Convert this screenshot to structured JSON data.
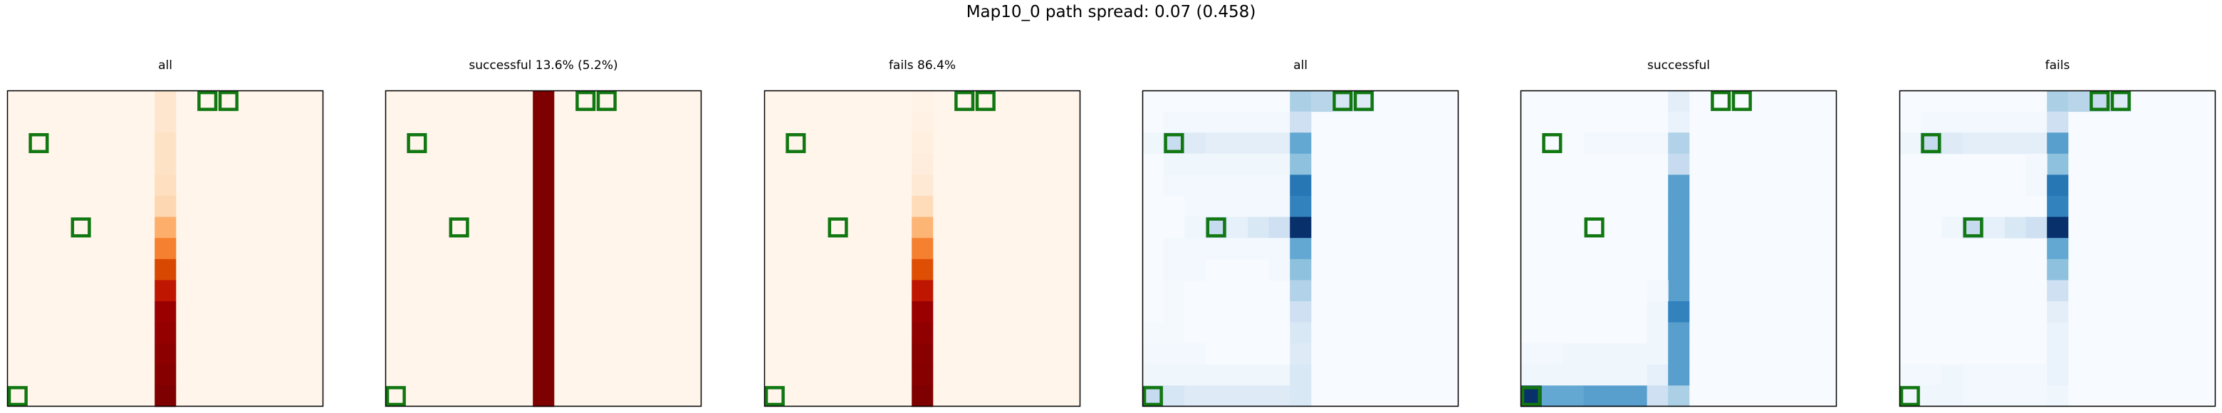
{
  "figure": {
    "suptitle": "Map10_0 path spread: 0.07 (0.458)"
  },
  "chart_data": {
    "type": "heatmap",
    "grid_size": 15,
    "markers": [
      [
        9,
        0
      ],
      [
        10,
        0
      ],
      [
        1,
        2
      ],
      [
        3,
        6
      ],
      [
        0,
        14
      ]
    ],
    "marker_color": "#117711",
    "panels": [
      {
        "title": "all",
        "cmap": "reds",
        "cells": [
          [
            7,
            0,
            0.15
          ],
          [
            7,
            1,
            0.15
          ],
          [
            7,
            2,
            0.18
          ],
          [
            7,
            3,
            0.18
          ],
          [
            7,
            4,
            0.2
          ],
          [
            7,
            5,
            0.25
          ],
          [
            7,
            6,
            0.45
          ],
          [
            7,
            7,
            0.55
          ],
          [
            7,
            8,
            0.75
          ],
          [
            7,
            9,
            0.82
          ],
          [
            7,
            10,
            0.92
          ],
          [
            7,
            11,
            0.94
          ],
          [
            7,
            12,
            0.96
          ],
          [
            7,
            13,
            0.98
          ],
          [
            7,
            14,
            1.0
          ]
        ]
      },
      {
        "title": "successful 13.6% (5.2%)",
        "cmap": "reds",
        "cells": [
          [
            7,
            0,
            1
          ],
          [
            7,
            1,
            1
          ],
          [
            7,
            2,
            1
          ],
          [
            7,
            3,
            1
          ],
          [
            7,
            4,
            1
          ],
          [
            7,
            5,
            1
          ],
          [
            7,
            6,
            1
          ],
          [
            7,
            7,
            1
          ],
          [
            7,
            8,
            1
          ],
          [
            7,
            9,
            1
          ],
          [
            7,
            10,
            1
          ],
          [
            7,
            11,
            1
          ],
          [
            7,
            12,
            1
          ],
          [
            7,
            13,
            1
          ],
          [
            7,
            14,
            1
          ]
        ]
      },
      {
        "title": "fails 86.4%",
        "cmap": "reds",
        "cells": [
          [
            7,
            0,
            0.02
          ],
          [
            7,
            1,
            0.04
          ],
          [
            7,
            2,
            0.06
          ],
          [
            7,
            3,
            0.08
          ],
          [
            7,
            4,
            0.12
          ],
          [
            7,
            5,
            0.22
          ],
          [
            7,
            6,
            0.42
          ],
          [
            7,
            7,
            0.55
          ],
          [
            7,
            8,
            0.72
          ],
          [
            7,
            9,
            0.82
          ],
          [
            7,
            10,
            0.92
          ],
          [
            7,
            11,
            0.95
          ],
          [
            7,
            12,
            0.97
          ],
          [
            7,
            13,
            0.98
          ],
          [
            7,
            14,
            1.0
          ]
        ]
      },
      {
        "title": "all",
        "cmap": "blues",
        "cells": [
          [
            7,
            0,
            0.4
          ],
          [
            8,
            0,
            0.35
          ],
          [
            9,
            0,
            0.2
          ],
          [
            10,
            0,
            0.15
          ],
          [
            1,
            1,
            0.03
          ],
          [
            2,
            1,
            0.03
          ],
          [
            3,
            1,
            0.03
          ],
          [
            4,
            1,
            0.03
          ],
          [
            5,
            1,
            0.03
          ],
          [
            6,
            1,
            0.03
          ],
          [
            7,
            1,
            0.25
          ],
          [
            0,
            2,
            0.05
          ],
          [
            1,
            2,
            0.28
          ],
          [
            2,
            2,
            0.15
          ],
          [
            3,
            2,
            0.12
          ],
          [
            4,
            2,
            0.12
          ],
          [
            5,
            2,
            0.12
          ],
          [
            6,
            2,
            0.12
          ],
          [
            7,
            2,
            0.62
          ],
          [
            1,
            3,
            0.05
          ],
          [
            2,
            3,
            0.05
          ],
          [
            3,
            3,
            0.05
          ],
          [
            4,
            3,
            0.05
          ],
          [
            5,
            3,
            0.05
          ],
          [
            6,
            3,
            0.05
          ],
          [
            7,
            3,
            0.5
          ],
          [
            1,
            4,
            0.03
          ],
          [
            2,
            4,
            0.03
          ],
          [
            3,
            4,
            0.03
          ],
          [
            4,
            4,
            0.03
          ],
          [
            5,
            4,
            0.03
          ],
          [
            6,
            4,
            0.03
          ],
          [
            7,
            4,
            0.78
          ],
          [
            2,
            5,
            0.03
          ],
          [
            3,
            5,
            0.03
          ],
          [
            4,
            5,
            0.03
          ],
          [
            5,
            5,
            0.03
          ],
          [
            6,
            5,
            0.03
          ],
          [
            7,
            5,
            0.75
          ],
          [
            2,
            6,
            0.05
          ],
          [
            3,
            6,
            0.3
          ],
          [
            4,
            6,
            0.1
          ],
          [
            5,
            6,
            0.18
          ],
          [
            6,
            6,
            0.25
          ],
          [
            7,
            6,
            1.0
          ],
          [
            1,
            7,
            0.03
          ],
          [
            2,
            7,
            0.03
          ],
          [
            3,
            7,
            0.03
          ],
          [
            4,
            7,
            0.03
          ],
          [
            5,
            7,
            0.03
          ],
          [
            6,
            7,
            0.03
          ],
          [
            7,
            7,
            0.62
          ],
          [
            1,
            8,
            0.03
          ],
          [
            2,
            8,
            0.03
          ],
          [
            6,
            8,
            0.03
          ],
          [
            7,
            8,
            0.5
          ],
          [
            1,
            9,
            0.02
          ],
          [
            7,
            9,
            0.38
          ],
          [
            1,
            10,
            0.02
          ],
          [
            7,
            10,
            0.25
          ],
          [
            0,
            11,
            0.02
          ],
          [
            1,
            11,
            0.02
          ],
          [
            7,
            11,
            0.18
          ],
          [
            0,
            12,
            0.03
          ],
          [
            1,
            12,
            0.03
          ],
          [
            2,
            12,
            0.03
          ],
          [
            7,
            12,
            0.15
          ],
          [
            0,
            13,
            0.05
          ],
          [
            1,
            13,
            0.05
          ],
          [
            2,
            13,
            0.05
          ],
          [
            3,
            13,
            0.05
          ],
          [
            4,
            13,
            0.05
          ],
          [
            5,
            13,
            0.05
          ],
          [
            6,
            13,
            0.05
          ],
          [
            7,
            13,
            0.18
          ],
          [
            0,
            14,
            0.3
          ],
          [
            1,
            14,
            0.2
          ],
          [
            2,
            14,
            0.15
          ],
          [
            3,
            14,
            0.15
          ],
          [
            4,
            14,
            0.15
          ],
          [
            5,
            14,
            0.15
          ],
          [
            6,
            14,
            0.15
          ],
          [
            7,
            14,
            0.18
          ]
        ]
      },
      {
        "title": "successful",
        "cmap": "blues",
        "cells": [
          [
            7,
            0,
            0.12
          ],
          [
            7,
            1,
            0.08
          ],
          [
            3,
            2,
            0.03
          ],
          [
            4,
            2,
            0.03
          ],
          [
            5,
            2,
            0.03
          ],
          [
            6,
            2,
            0.03
          ],
          [
            7,
            2,
            0.38
          ],
          [
            7,
            3,
            0.3
          ],
          [
            7,
            4,
            0.65
          ],
          [
            7,
            5,
            0.65
          ],
          [
            7,
            6,
            0.65
          ],
          [
            7,
            7,
            0.65
          ],
          [
            7,
            8,
            0.65
          ],
          [
            7,
            9,
            0.65
          ],
          [
            6,
            9,
            0.03
          ],
          [
            6,
            10,
            0.05
          ],
          [
            7,
            10,
            0.75
          ],
          [
            6,
            11,
            0.05
          ],
          [
            7,
            11,
            0.65
          ],
          [
            6,
            12,
            0.05
          ],
          [
            7,
            12,
            0.65
          ],
          [
            0,
            12,
            0.03
          ],
          [
            1,
            12,
            0.03
          ],
          [
            2,
            12,
            0.05
          ],
          [
            3,
            12,
            0.05
          ],
          [
            4,
            12,
            0.05
          ],
          [
            5,
            12,
            0.05
          ],
          [
            0,
            13,
            0.05
          ],
          [
            1,
            13,
            0.05
          ],
          [
            2,
            13,
            0.05
          ],
          [
            3,
            13,
            0.05
          ],
          [
            4,
            13,
            0.05
          ],
          [
            5,
            13,
            0.05
          ],
          [
            6,
            13,
            0.1
          ],
          [
            7,
            13,
            0.65
          ],
          [
            0,
            14,
            1.0
          ],
          [
            1,
            14,
            0.62
          ],
          [
            2,
            14,
            0.62
          ],
          [
            3,
            14,
            0.65
          ],
          [
            4,
            14,
            0.65
          ],
          [
            5,
            14,
            0.65
          ],
          [
            6,
            14,
            0.25
          ],
          [
            7,
            14,
            0.4
          ]
        ]
      },
      {
        "title": "fails",
        "cmap": "blues",
        "cells": [
          [
            7,
            0,
            0.4
          ],
          [
            8,
            0,
            0.35
          ],
          [
            9,
            0,
            0.3
          ],
          [
            10,
            0,
            0.15
          ],
          [
            1,
            1,
            0.03
          ],
          [
            2,
            1,
            0.03
          ],
          [
            3,
            1,
            0.03
          ],
          [
            4,
            1,
            0.03
          ],
          [
            5,
            1,
            0.03
          ],
          [
            6,
            1,
            0.03
          ],
          [
            7,
            1,
            0.25
          ],
          [
            0,
            2,
            0.05
          ],
          [
            1,
            2,
            0.3
          ],
          [
            2,
            2,
            0.15
          ],
          [
            3,
            2,
            0.12
          ],
          [
            4,
            2,
            0.12
          ],
          [
            5,
            2,
            0.12
          ],
          [
            6,
            2,
            0.12
          ],
          [
            7,
            2,
            0.65
          ],
          [
            7,
            3,
            0.5
          ],
          [
            6,
            3,
            0.03
          ],
          [
            6,
            4,
            0.03
          ],
          [
            7,
            4,
            0.78
          ],
          [
            7,
            5,
            0.75
          ],
          [
            2,
            6,
            0.05
          ],
          [
            3,
            6,
            0.3
          ],
          [
            4,
            6,
            0.1
          ],
          [
            5,
            6,
            0.18
          ],
          [
            6,
            6,
            0.25
          ],
          [
            7,
            6,
            1.0
          ],
          [
            7,
            7,
            0.62
          ],
          [
            7,
            8,
            0.5
          ],
          [
            7,
            9,
            0.25
          ],
          [
            7,
            10,
            0.12
          ],
          [
            7,
            11,
            0.08
          ],
          [
            7,
            12,
            0.08
          ],
          [
            0,
            13,
            0.03
          ],
          [
            1,
            13,
            0.03
          ],
          [
            2,
            13,
            0.05
          ],
          [
            3,
            13,
            0.03
          ],
          [
            4,
            13,
            0.03
          ],
          [
            5,
            13,
            0.03
          ],
          [
            6,
            13,
            0.03
          ],
          [
            7,
            13,
            0.08
          ],
          [
            0,
            14,
            0.05
          ],
          [
            1,
            14,
            0.05
          ],
          [
            2,
            14,
            0.05
          ],
          [
            3,
            14,
            0.03
          ],
          [
            4,
            14,
            0.03
          ],
          [
            5,
            14,
            0.03
          ],
          [
            6,
            14,
            0.03
          ],
          [
            7,
            14,
            0.05
          ]
        ]
      }
    ]
  }
}
